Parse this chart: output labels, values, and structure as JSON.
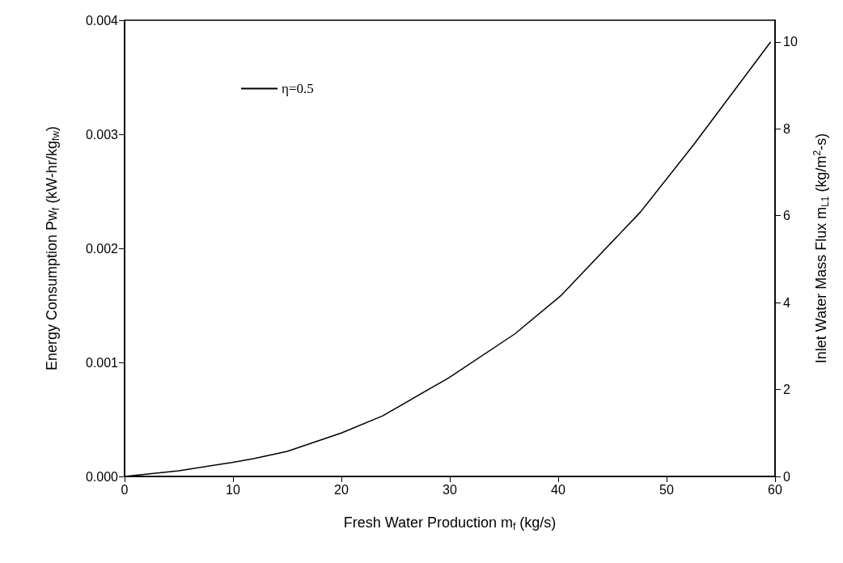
{
  "chart_data": {
    "type": "line",
    "xlabel": "Fresh Water Production m$_{f}$ (kg/s)",
    "ylabel": "Energy Consumption Pw$_{f}$ (kW-hr/kg$_{fw}$)",
    "y2label": "Inlet Water Mass Flux m$_{L1}$ (kg/m$^{2}$-s)",
    "xlim": [
      0,
      60
    ],
    "xticks": [
      0,
      10,
      20,
      30,
      40,
      50,
      60
    ],
    "ylim": [
      0,
      0.004
    ],
    "yticks": [
      {
        "value": 0,
        "label": "0.000"
      },
      {
        "value": 0.001,
        "label": "0.001"
      },
      {
        "value": 0.002,
        "label": "0.002"
      },
      {
        "value": 0.003,
        "label": "0.003"
      },
      {
        "value": 0.004,
        "label": "0.004"
      }
    ],
    "y2lim": [
      0,
      10.5
    ],
    "y2ticks": [
      0,
      2,
      4,
      6,
      8,
      10
    ],
    "grid": false,
    "legend": "top left",
    "marker": "none",
    "line_style": "solid",
    "series": [
      {
        "name": "η=0.5",
        "color": "#000000",
        "x": [
          0,
          5,
          9.9,
          11.9,
          15,
          20,
          23.8,
          29.9,
          36,
          40.3,
          47.6,
          52.5,
          59.6
        ],
        "values": [
          0,
          5e-05,
          0.000122,
          0.000156,
          0.00022,
          0.000381,
          0.000531,
          0.000864,
          0.00125,
          0.00159,
          0.00232,
          0.00291,
          0.00381
        ]
      }
    ]
  }
}
